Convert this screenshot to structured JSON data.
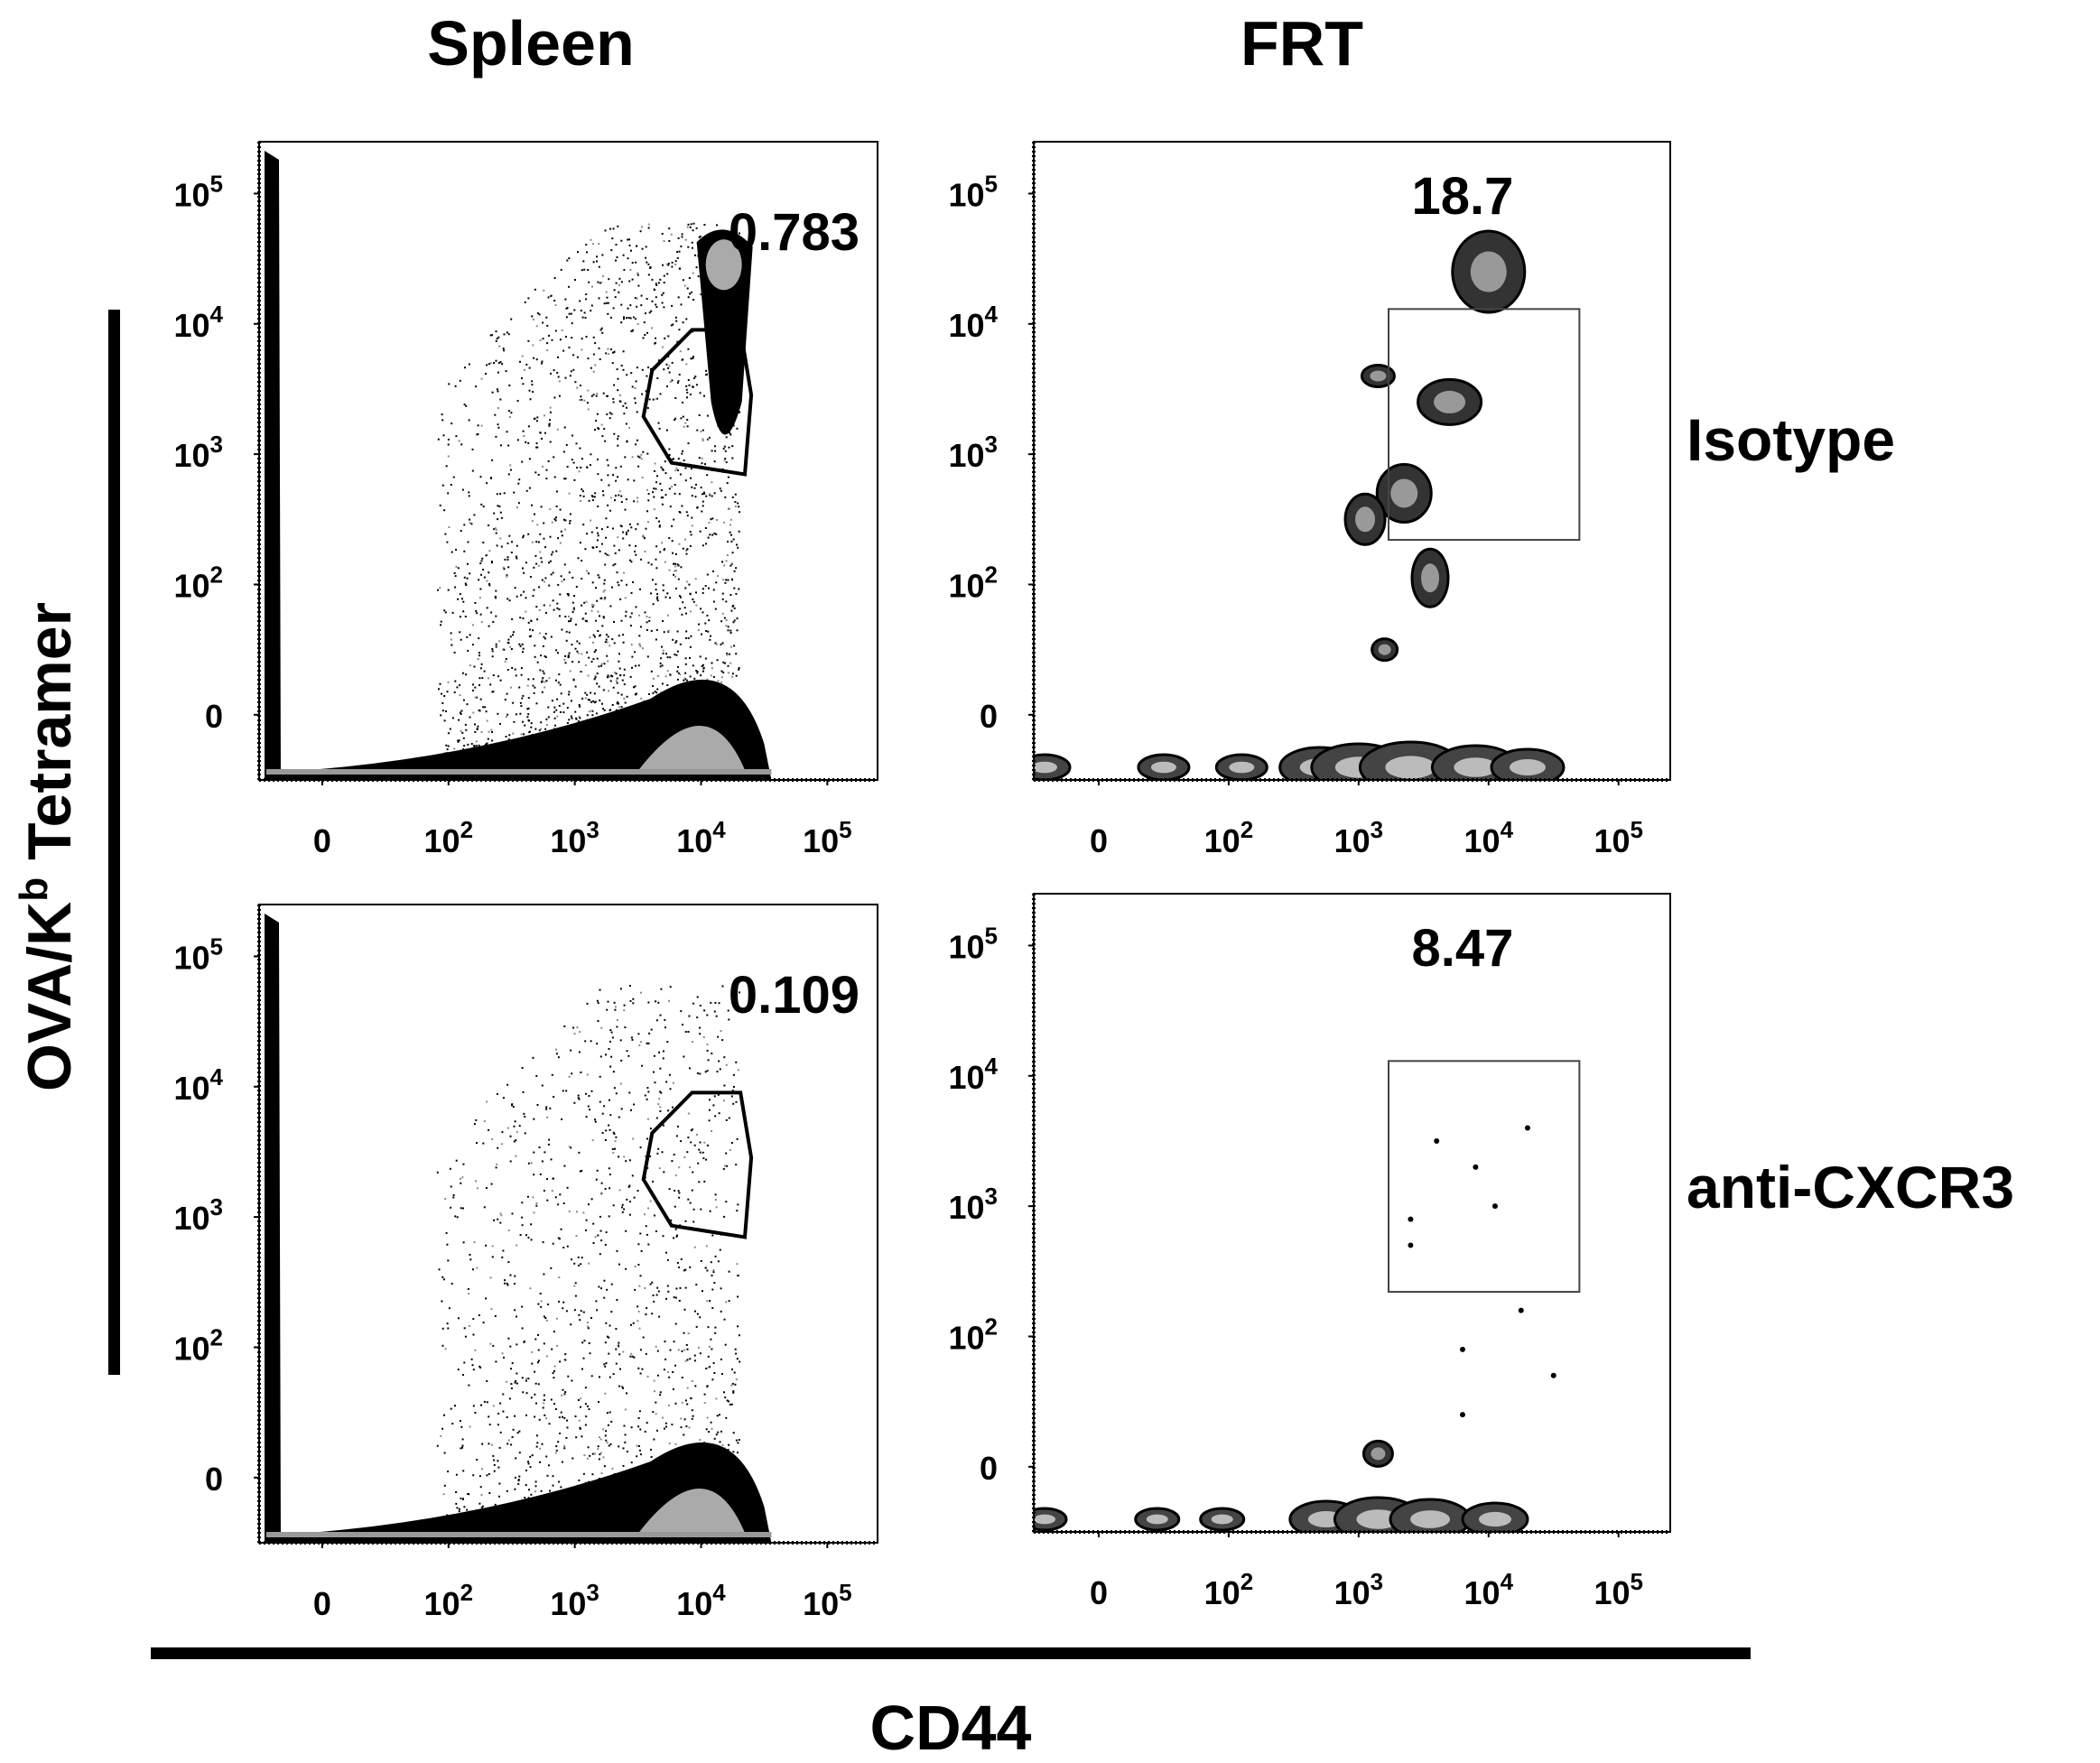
{
  "figure": {
    "columns": [
      "Spleen",
      "FRT"
    ],
    "rows": [
      "Isotype",
      "anti-CXCR3"
    ],
    "x_axis_label": "CD44",
    "y_axis_label_main": "OVA/K",
    "y_axis_label_sup": "b",
    "y_axis_label_tail": " Tetramer"
  },
  "axes": {
    "y_ticks": [
      {
        "base": "10",
        "exp": "5",
        "value": 100000
      },
      {
        "base": "10",
        "exp": "4",
        "value": 10000
      },
      {
        "base": "10",
        "exp": "3",
        "value": 1000
      },
      {
        "base": "10",
        "exp": "2",
        "value": 100
      },
      {
        "base": "0",
        "exp": "",
        "value": 0
      }
    ],
    "x_ticks": [
      {
        "base": "0",
        "exp": "",
        "value": 0
      },
      {
        "base": "10",
        "exp": "2",
        "value": 100
      },
      {
        "base": "10",
        "exp": "3",
        "value": 1000
      },
      {
        "base": "10",
        "exp": "4",
        "value": 10000
      },
      {
        "base": "10",
        "exp": "5",
        "value": 100000
      }
    ]
  },
  "chart_data": [
    {
      "type": "scatter",
      "panel": "spleen-isotype",
      "column": "Spleen",
      "row": "Isotype",
      "xlabel": "CD44",
      "ylabel": "OVA/Kb Tetramer",
      "x_scale": "biexponential",
      "y_scale": "biexponential",
      "xlim": [
        -50,
        250000
      ],
      "ylim": [
        -50,
        250000
      ],
      "gate": {
        "shape": "polygon",
        "x_range": [
          3500,
          25000
        ],
        "y_range": [
          700,
          9000
        ],
        "percent": "0.783"
      }
    },
    {
      "type": "scatter",
      "panel": "frt-isotype",
      "column": "FRT",
      "row": "Isotype",
      "xlabel": "CD44",
      "ylabel": "OVA/Kb Tetramer",
      "x_scale": "biexponential",
      "y_scale": "biexponential",
      "xlim": [
        -50,
        250000
      ],
      "ylim": [
        -50,
        250000
      ],
      "gate": {
        "shape": "rectangle",
        "x_range": [
          1700,
          50000
        ],
        "y_range": [
          220,
          13000
        ],
        "percent": "18.7"
      }
    },
    {
      "type": "scatter",
      "panel": "spleen-anti-cxcr3",
      "column": "Spleen",
      "row": "anti-CXCR3",
      "xlabel": "CD44",
      "ylabel": "OVA/Kb Tetramer",
      "x_scale": "biexponential",
      "y_scale": "biexponential",
      "xlim": [
        -50,
        250000
      ],
      "ylim": [
        -50,
        250000
      ],
      "gate": {
        "shape": "polygon",
        "x_range": [
          3500,
          25000
        ],
        "y_range": [
          700,
          9000
        ],
        "percent": "0.109"
      }
    },
    {
      "type": "scatter",
      "panel": "frt-anti-cxcr3",
      "column": "FRT",
      "row": "anti-CXCR3",
      "xlabel": "CD44",
      "ylabel": "OVA/Kb Tetramer",
      "x_scale": "biexponential",
      "y_scale": "biexponential",
      "xlim": [
        -50,
        250000
      ],
      "ylim": [
        -50,
        250000
      ],
      "gate": {
        "shape": "rectangle",
        "x_range": [
          1700,
          50000
        ],
        "y_range": [
          220,
          13000
        ],
        "percent": "8.47"
      }
    }
  ]
}
